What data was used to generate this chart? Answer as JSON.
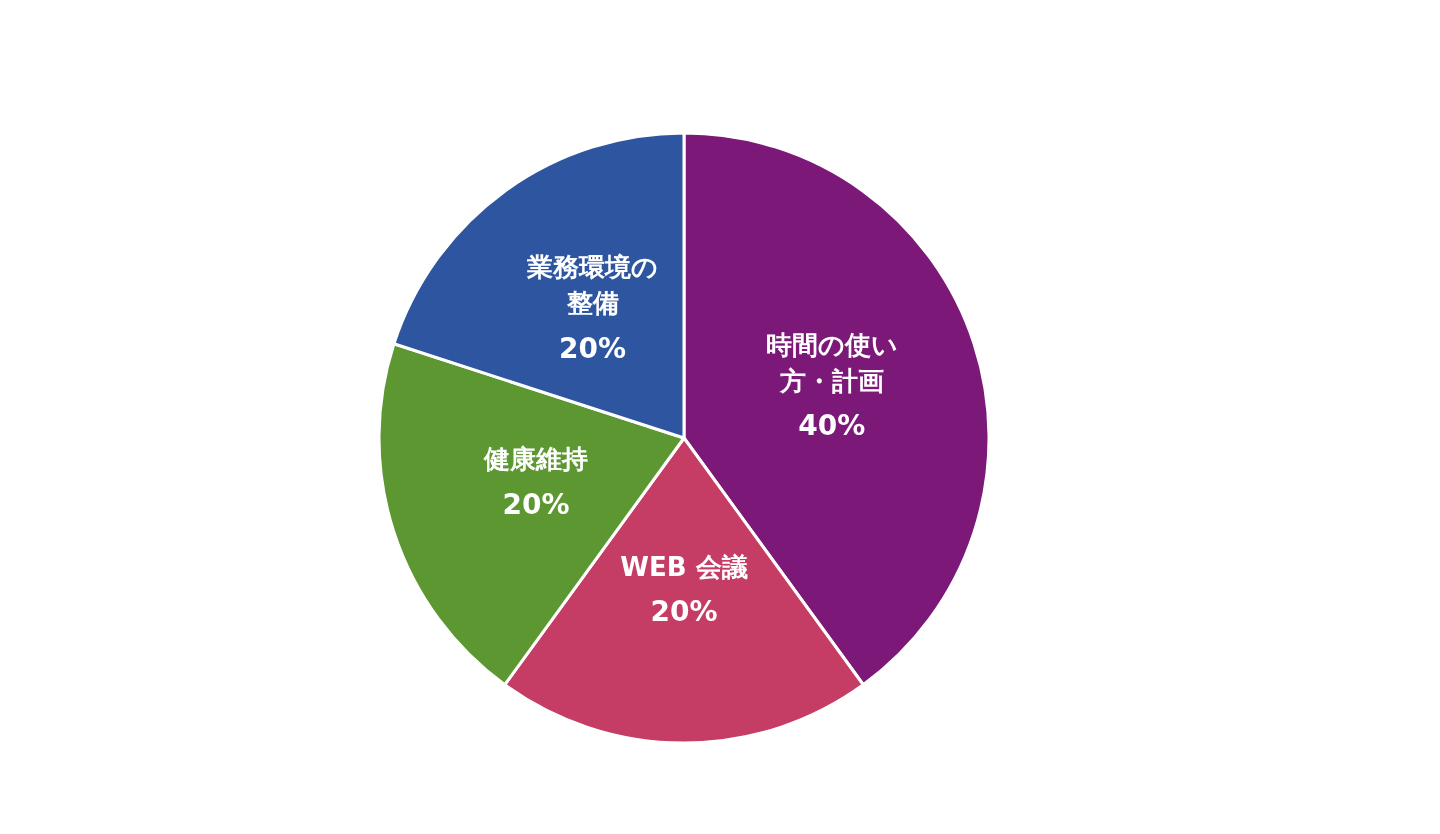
{
  "chart_data": {
    "type": "pie",
    "categories": [
      "時間の使い方・計画",
      "WEB 会議",
      "健康維持",
      "業務環境の整備"
    ],
    "values": [
      40,
      20,
      20,
      20
    ],
    "colors": [
      "#7b1878",
      "#c53c64",
      "#5c9731",
      "#2e56a0"
    ],
    "value_labels": [
      "40%",
      "20%",
      "20%",
      "20%"
    ],
    "legend": false
  }
}
